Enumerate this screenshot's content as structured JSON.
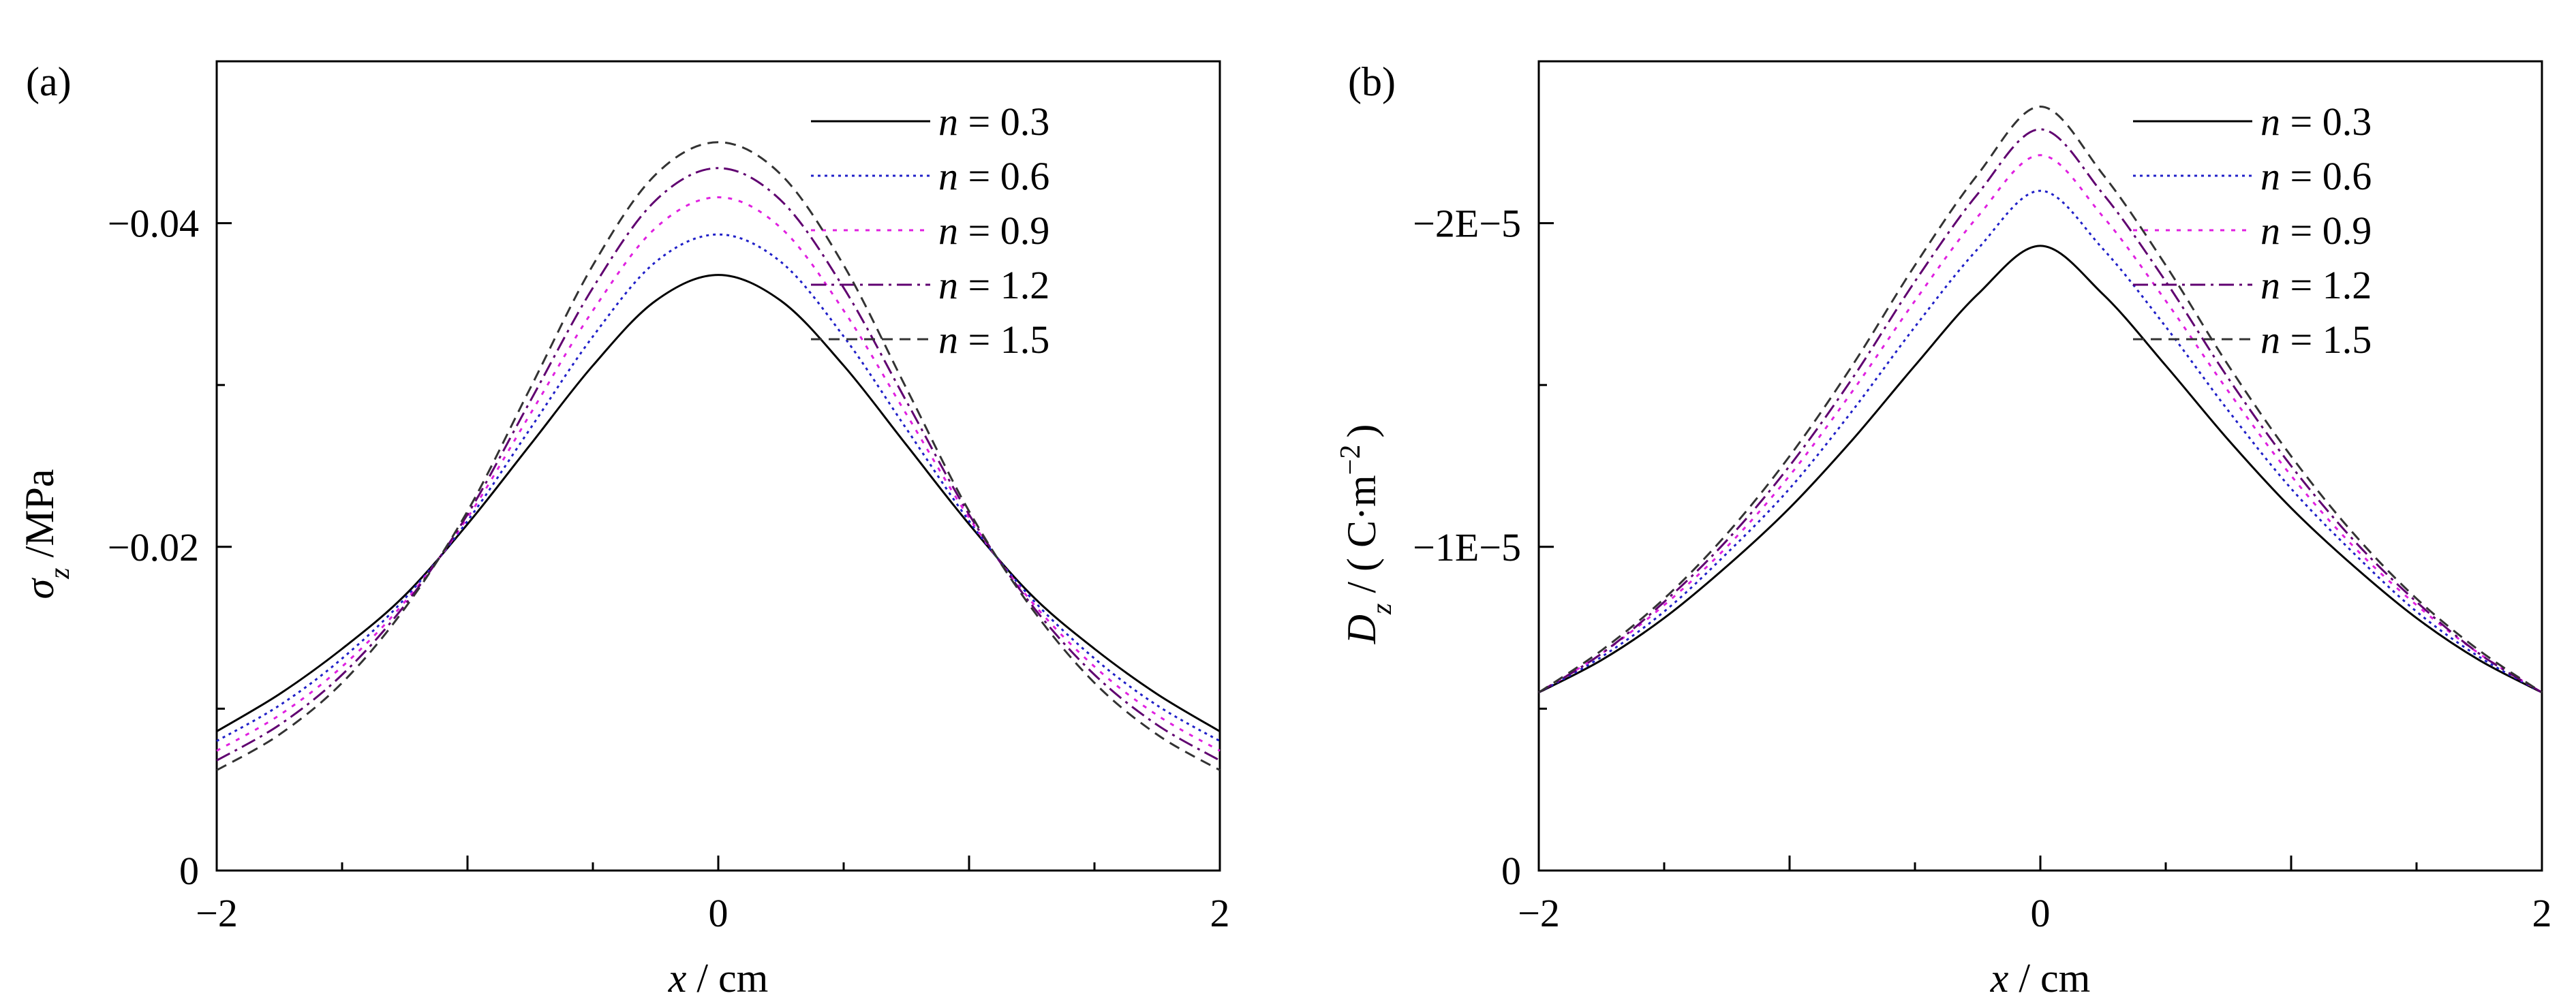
{
  "chart_data": [
    {
      "panel": "(a)",
      "type": "line",
      "xlabel_var": "x",
      "xlabel_unit": " / cm",
      "ylabel_var": "σ",
      "ylabel_sub": "z",
      "ylabel_unit": " /MPa",
      "xlim": [
        -2,
        2
      ],
      "ylim": [
        0,
        -0.05
      ],
      "xticks": [
        -2,
        0,
        2
      ],
      "xtick_labels": [
        "−2",
        "0",
        "2"
      ],
      "yticks": [
        0,
        -0.02,
        -0.04
      ],
      "ytick_labels": [
        "0",
        "−0.02",
        "−0.04"
      ],
      "grid": false,
      "legend_position": "top-right",
      "x": [
        -2,
        -1.75,
        -1.5,
        -1.25,
        -1,
        -0.75,
        -0.5,
        -0.25,
        0,
        0.25,
        0.5,
        0.75,
        1,
        1.25,
        1.5,
        1.75,
        2
      ],
      "series": [
        {
          "name": "n = 0.3",
          "var": "n",
          "value_text": " = 0.3",
          "color": "#000000",
          "dash": "solid",
          "values": [
            -0.0086,
            -0.0109,
            -0.0137,
            -0.017,
            -0.0214,
            -0.0263,
            -0.0312,
            -0.0352,
            -0.0368,
            -0.0352,
            -0.0312,
            -0.0263,
            -0.0214,
            -0.017,
            -0.0137,
            -0.0109,
            -0.0086
          ]
        },
        {
          "name": "n = 0.6",
          "var": "n",
          "value_text": " = 0.6",
          "color": "#2020c8",
          "dash": "dot",
          "values": [
            -0.008,
            -0.0102,
            -0.0131,
            -0.0168,
            -0.0216,
            -0.0273,
            -0.033,
            -0.0376,
            -0.0393,
            -0.0376,
            -0.033,
            -0.0273,
            -0.0216,
            -0.0168,
            -0.0131,
            -0.0102,
            -0.008
          ]
        },
        {
          "name": "n = 0.9",
          "var": "n",
          "value_text": " = 0.9",
          "color": "#e020e0",
          "dash": "dot2",
          "values": [
            -0.0074,
            -0.0096,
            -0.0126,
            -0.0166,
            -0.0218,
            -0.0282,
            -0.0346,
            -0.0397,
            -0.0416,
            -0.0397,
            -0.0346,
            -0.0282,
            -0.0218,
            -0.0166,
            -0.0126,
            -0.0096,
            -0.0074
          ]
        },
        {
          "name": "n = 1.2",
          "var": "n",
          "value_text": " = 1.2",
          "color": "#600070",
          "dash": "dashdot",
          "values": [
            -0.0068,
            -0.009,
            -0.0121,
            -0.0164,
            -0.022,
            -0.029,
            -0.036,
            -0.0414,
            -0.0434,
            -0.0414,
            -0.036,
            -0.029,
            -0.022,
            -0.0164,
            -0.0121,
            -0.009,
            -0.0068
          ]
        },
        {
          "name": "n = 1.5",
          "var": "n",
          "value_text": " = 1.5",
          "color": "#333333",
          "dash": "dash",
          "values": [
            -0.0062,
            -0.0084,
            -0.0116,
            -0.0162,
            -0.0222,
            -0.0298,
            -0.0374,
            -0.043,
            -0.045,
            -0.043,
            -0.0374,
            -0.0298,
            -0.0222,
            -0.0162,
            -0.0116,
            -0.0084,
            -0.0062
          ]
        }
      ]
    },
    {
      "panel": "(b)",
      "type": "line",
      "xlabel_var": "x",
      "xlabel_unit": " / cm",
      "ylabel_var": "D",
      "ylabel_sub": "z",
      "ylabel_unit": " / ( C·m",
      "ylabel_sup": "−2",
      "ylabel_close": ")",
      "xlim": [
        -2,
        2
      ],
      "ylim": [
        0,
        -2.5e-05
      ],
      "xticks": [
        -2,
        0,
        2
      ],
      "xtick_labels": [
        "−2",
        "0",
        "2"
      ],
      "yticks": [
        0,
        -1e-05,
        -2e-05
      ],
      "ytick_labels": [
        "0",
        "−1E−5",
        "−2E−5"
      ],
      "grid": false,
      "legend_position": "top-right",
      "x": [
        -2,
        -1.75,
        -1.5,
        -1.25,
        -1,
        -0.75,
        -0.5,
        -0.25,
        0,
        0.25,
        0.5,
        0.75,
        1,
        1.25,
        1.5,
        1.75,
        2
      ],
      "series": [
        {
          "name": "n = 0.3",
          "var": "n",
          "value_text": " = 0.3",
          "color": "#000000",
          "dash": "solid",
          "values": [
            -5.5e-06,
            -6.5e-06,
            -7.8e-06,
            -9.4e-06,
            -1.12e-05,
            -1.33e-05,
            -1.56e-05,
            -1.78e-05,
            -1.93e-05,
            -1.78e-05,
            -1.56e-05,
            -1.33e-05,
            -1.12e-05,
            -9.4e-06,
            -7.8e-06,
            -6.5e-06,
            -5.5e-06
          ]
        },
        {
          "name": "n = 0.6",
          "var": "n",
          "value_text": " = 0.6",
          "color": "#2020c8",
          "dash": "dot",
          "values": [
            -5.5e-06,
            -6.6e-06,
            -8e-06,
            -9.8e-06,
            -1.18e-05,
            -1.42e-05,
            -1.68e-05,
            -1.92e-05,
            -2.1e-05,
            -1.92e-05,
            -1.68e-05,
            -1.42e-05,
            -1.18e-05,
            -9.8e-06,
            -8e-06,
            -6.6e-06,
            -5.5e-06
          ]
        },
        {
          "name": "n = 0.9",
          "var": "n",
          "value_text": " = 0.9",
          "color": "#e020e0",
          "dash": "dot2",
          "values": [
            -5.5e-06,
            -6.7e-06,
            -8.2e-06,
            -1e-05,
            -1.22e-05,
            -1.48e-05,
            -1.76e-05,
            -2.02e-05,
            -2.21e-05,
            -2.02e-05,
            -1.76e-05,
            -1.48e-05,
            -1.22e-05,
            -1e-05,
            -8.2e-06,
            -6.7e-06,
            -5.5e-06
          ]
        },
        {
          "name": "n = 1.2",
          "var": "n",
          "value_text": " = 1.2",
          "color": "#600070",
          "dash": "dashdot",
          "values": [
            -5.5e-06,
            -6.7e-06,
            -8.3e-06,
            -1.02e-05,
            -1.25e-05,
            -1.52e-05,
            -1.82e-05,
            -2.09e-05,
            -2.29e-05,
            -2.09e-05,
            -1.82e-05,
            -1.52e-05,
            -1.25e-05,
            -1.02e-05,
            -8.3e-06,
            -6.7e-06,
            -5.5e-06
          ]
        },
        {
          "name": "n = 1.5",
          "var": "n",
          "value_text": " = 1.5",
          "color": "#333333",
          "dash": "dash",
          "values": [
            -5.5e-06,
            -6.8e-06,
            -8.4e-06,
            -1.04e-05,
            -1.28e-05,
            -1.56e-05,
            -1.87e-05,
            -2.15e-05,
            -2.36e-05,
            -2.15e-05,
            -1.87e-05,
            -1.56e-05,
            -1.28e-05,
            -1.04e-05,
            -8.4e-06,
            -6.8e-06,
            -5.5e-06
          ]
        }
      ]
    }
  ]
}
